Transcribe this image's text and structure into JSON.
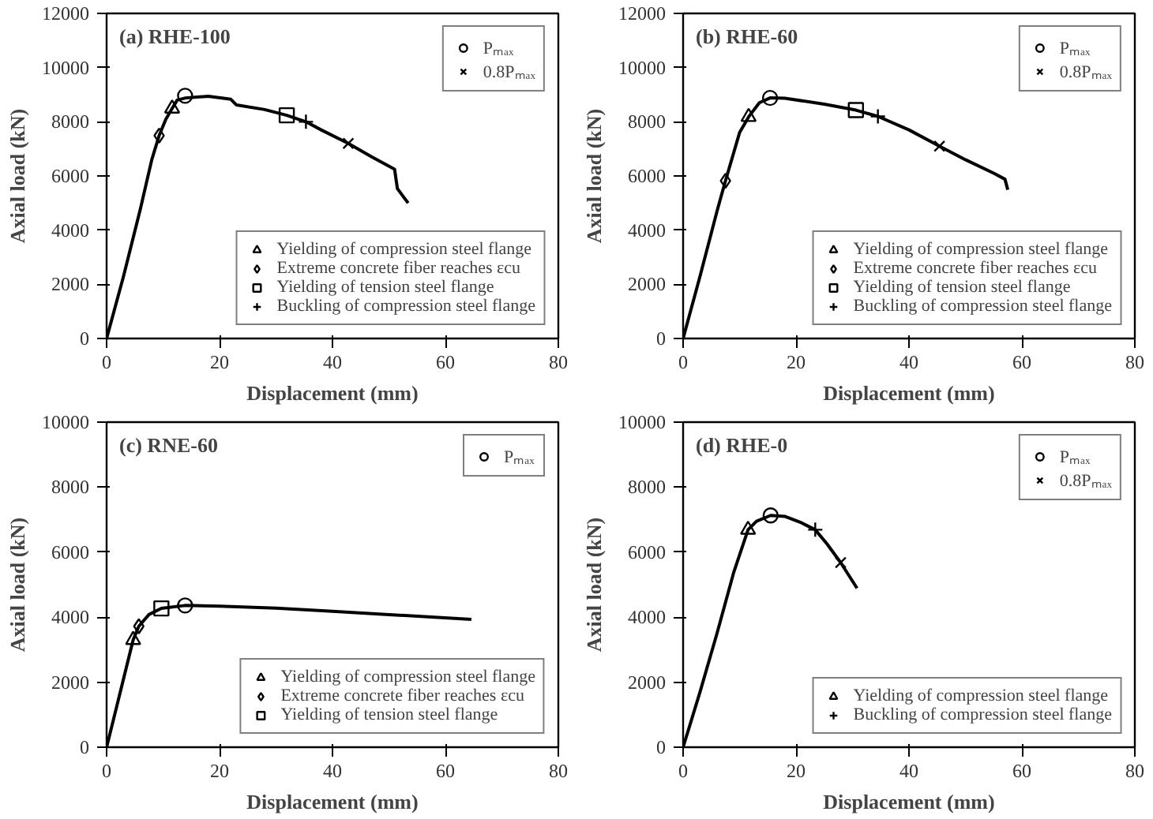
{
  "chart_data": [
    {
      "type": "line",
      "title": "(a) RHE-100",
      "xlabel": "Displacement (mm)",
      "ylabel": "Axial load (kN)",
      "xlim": [
        0,
        80
      ],
      "xticks": [
        0,
        20,
        40,
        60,
        80
      ],
      "ylim": [
        0,
        12000
      ],
      "yticks": [
        0,
        2000,
        4000,
        6000,
        8000,
        10000,
        12000
      ],
      "grid": false,
      "legend": "bottom right",
      "line_style": "solid",
      "series": [
        {
          "color": "#000000",
          "marker": "none",
          "x": [
            0,
            3,
            6,
            8,
            9.3,
            10.5,
            11.6,
            12.5,
            14,
            18,
            22,
            23,
            28,
            31.9,
            35.3,
            38,
            42.8,
            47,
            51,
            51.5,
            53.4
          ],
          "values": [
            0,
            2300,
            4800,
            6600,
            7490,
            8100,
            8490,
            8800,
            8880,
            8940,
            8830,
            8620,
            8450,
            8240,
            8000,
            7700,
            7200,
            6700,
            6250,
            5530,
            5000
          ]
        },
        {
          "type": "scatter",
          "name": "Pₘₐₓ",
          "color": "#000000",
          "marker": "circle",
          "x": [
            13.9
          ],
          "values": [
            8960
          ]
        },
        {
          "type": "scatter",
          "name": "0.8Pₘₐₓ",
          "color": "#000000",
          "marker": "x",
          "x": [
            42.8
          ],
          "values": [
            7200
          ]
        },
        {
          "type": "scatter",
          "name": "Yielding of compression steel flange",
          "color": "#000000",
          "marker": "triangle",
          "x": [
            11.6
          ],
          "values": [
            8490
          ]
        },
        {
          "type": "scatter",
          "name": "Extreme concrete fiber reaches εcu",
          "color": "#000000",
          "marker": "diamond",
          "x": [
            9.3
          ],
          "values": [
            7490
          ]
        },
        {
          "type": "scatter",
          "name": "Yielding of tension steel flange",
          "color": "#000000",
          "marker": "square",
          "x": [
            31.9
          ],
          "values": [
            8240
          ]
        },
        {
          "type": "scatter",
          "name": "Buckling of compression steel flange",
          "color": "#000000",
          "marker": "cross",
          "x": [
            35.3
          ],
          "values": [
            8000
          ]
        }
      ]
    },
    {
      "type": "line",
      "title": "(b) RHE-60",
      "xlabel": "Displacement (mm)",
      "ylabel": "Axial load (kN)",
      "xlim": [
        0,
        80
      ],
      "xticks": [
        0,
        20,
        40,
        60,
        80
      ],
      "ylim": [
        0,
        12000
      ],
      "yticks": [
        0,
        2000,
        4000,
        6000,
        8000,
        10000,
        12000
      ],
      "grid": false,
      "legend": "bottom right",
      "line_style": "solid",
      "series": [
        {
          "color": "#000000",
          "marker": "none",
          "x": [
            0,
            3,
            6,
            7.5,
            10,
            11.6,
            13.5,
            15.4,
            18,
            25,
            30.6,
            34.5,
            40,
            45.4,
            50,
            55,
            57,
            57.5
          ],
          "values": [
            0,
            2300,
            4700,
            5820,
            7600,
            8180,
            8700,
            8880,
            8870,
            8650,
            8430,
            8200,
            7700,
            7100,
            6600,
            6100,
            5880,
            5490
          ]
        },
        {
          "type": "scatter",
          "name": "Pₘₐₓ",
          "color": "#000000",
          "marker": "circle",
          "x": [
            15.4
          ],
          "values": [
            8880
          ]
        },
        {
          "type": "scatter",
          "name": "0.8Pₘₐₓ",
          "color": "#000000",
          "marker": "x",
          "x": [
            45.4
          ],
          "values": [
            7100
          ]
        },
        {
          "type": "scatter",
          "name": "Yielding of compression steel flange",
          "color": "#000000",
          "marker": "triangle",
          "x": [
            11.6
          ],
          "values": [
            8180
          ]
        },
        {
          "type": "scatter",
          "name": "Extreme concrete fiber reaches εcu",
          "color": "#000000",
          "marker": "diamond",
          "x": [
            7.5
          ],
          "values": [
            5820
          ]
        },
        {
          "type": "scatter",
          "name": "Yielding of tension steel flange",
          "color": "#000000",
          "marker": "square",
          "x": [
            30.6
          ],
          "values": [
            8430
          ]
        },
        {
          "type": "scatter",
          "name": "Buckling of compression steel flange",
          "color": "#000000",
          "marker": "cross",
          "x": [
            34.5
          ],
          "values": [
            8200
          ]
        }
      ]
    },
    {
      "type": "line",
      "title": "(c) RNE-60",
      "xlabel": "Displacement (mm)",
      "ylabel": "Axial load (kN)",
      "xlim": [
        0,
        80
      ],
      "xticks": [
        0,
        20,
        40,
        60,
        80
      ],
      "ylim": [
        0,
        10000
      ],
      "yticks": [
        0,
        2000,
        4000,
        6000,
        8000,
        10000
      ],
      "grid": false,
      "legend": "bottom right",
      "line_style": "solid",
      "series": [
        {
          "color": "#000000",
          "marker": "none",
          "x": [
            0,
            2,
            4.7,
            5.7,
            7.5,
            9.7,
            13.9,
            20,
            30,
            40,
            50,
            64.6
          ],
          "values": [
            0,
            1400,
            3300,
            3720,
            4080,
            4270,
            4360,
            4340,
            4280,
            4180,
            4080,
            3930
          ]
        },
        {
          "type": "scatter",
          "name": "Pₘₐₓ",
          "color": "#000000",
          "marker": "circle",
          "x": [
            13.9
          ],
          "values": [
            4360
          ]
        },
        {
          "type": "scatter",
          "name": "Yielding of compression steel flange",
          "color": "#000000",
          "marker": "triangle",
          "x": [
            4.7
          ],
          "values": [
            3300
          ]
        },
        {
          "type": "scatter",
          "name": "Extreme concrete fiber reaches εcu",
          "color": "#000000",
          "marker": "diamond",
          "x": [
            5.7
          ],
          "values": [
            3720
          ]
        },
        {
          "type": "scatter",
          "name": "Yielding of tension steel flange",
          "color": "#000000",
          "marker": "square",
          "x": [
            9.7
          ],
          "values": [
            4270
          ]
        }
      ]
    },
    {
      "type": "line",
      "title": "(d) RHE-0",
      "xlabel": "Displacement (mm)",
      "ylabel": "Axial load (kN)",
      "xlim": [
        0,
        80
      ],
      "xticks": [
        0,
        20,
        40,
        60,
        80
      ],
      "ylim": [
        0,
        10000
      ],
      "yticks": [
        0,
        2000,
        4000,
        6000,
        8000,
        10000
      ],
      "grid": false,
      "legend": "bottom right",
      "line_style": "solid",
      "series": [
        {
          "color": "#000000",
          "marker": "none",
          "x": [
            0,
            3,
            6,
            9,
            11.5,
            13,
            15.5,
            18,
            21,
            23.4,
            25.5,
            27.9,
            30.8
          ],
          "values": [
            0,
            1700,
            3500,
            5400,
            6690,
            6950,
            7130,
            7100,
            6900,
            6690,
            6250,
            5680,
            4890
          ]
        },
        {
          "type": "scatter",
          "name": "Pₘₐₓ",
          "color": "#000000",
          "marker": "circle",
          "x": [
            15.5
          ],
          "values": [
            7130
          ]
        },
        {
          "type": "scatter",
          "name": "0.8Pₘₐₓ",
          "color": "#000000",
          "marker": "x",
          "x": [
            27.9
          ],
          "values": [
            5680
          ]
        },
        {
          "type": "scatter",
          "name": "Yielding of compression steel flange",
          "color": "#000000",
          "marker": "triangle",
          "x": [
            11.5
          ],
          "values": [
            6690
          ]
        },
        {
          "type": "scatter",
          "name": "Buckling of compression steel flange",
          "color": "#000000",
          "marker": "cross",
          "x": [
            23.4
          ],
          "values": [
            6690
          ]
        }
      ]
    }
  ]
}
